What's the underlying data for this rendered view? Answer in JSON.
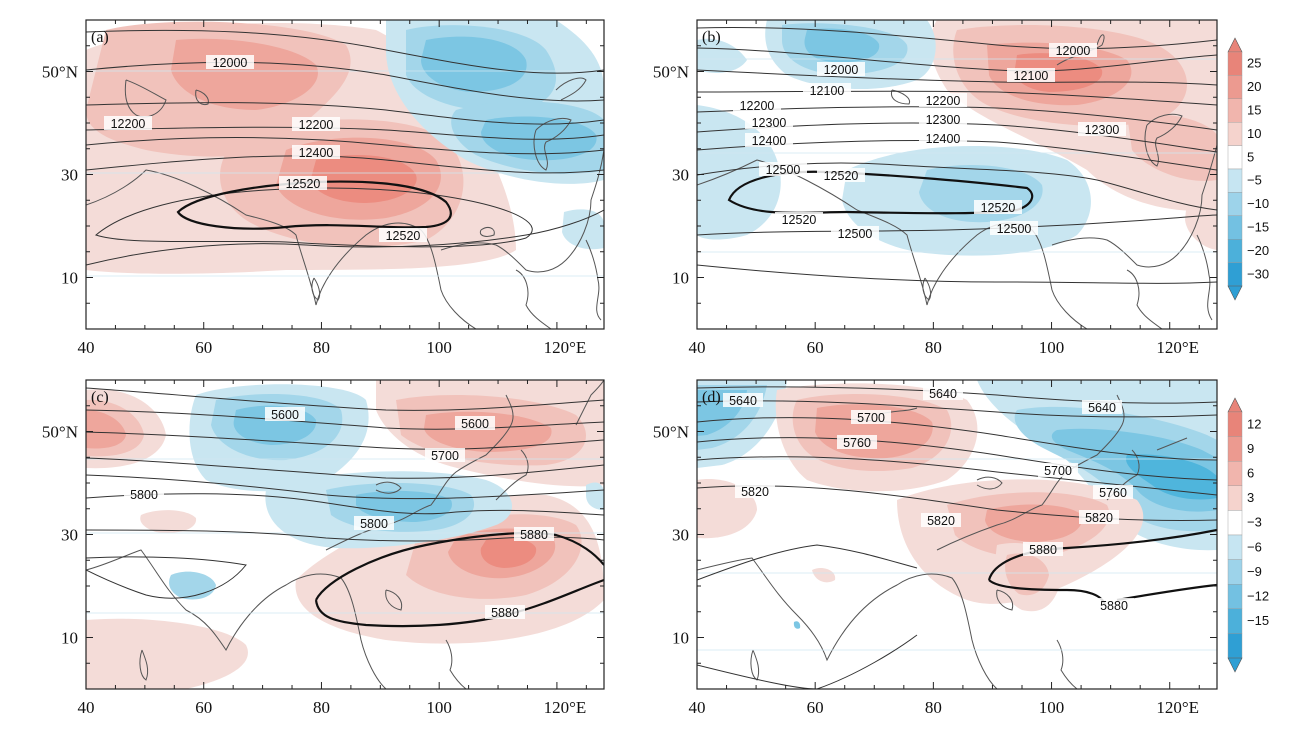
{
  "figure": {
    "x_ticks": [
      "40",
      "60",
      "80",
      "100",
      "120°E"
    ],
    "y_ticks": [
      "50°N",
      "30",
      "10"
    ],
    "colors": {
      "positive": [
        "#f4dcd8",
        "#f1c2bb",
        "#eea69c",
        "#ec8c80"
      ],
      "negative": [
        "#c9e6f1",
        "#a3d6ea",
        "#7cc6e3",
        "#4fb5dc"
      ]
    }
  },
  "panels": [
    {
      "letter": "(a)",
      "contour_labels": [
        "12000",
        "12200",
        "12200",
        "12400",
        "12520",
        "12520"
      ]
    },
    {
      "letter": "(b)",
      "contour_labels": [
        "12000",
        "12000",
        "12100",
        "12100",
        "12200",
        "12200",
        "12300",
        "12300",
        "12300",
        "12400",
        "12400",
        "12500",
        "12520",
        "12520",
        "12520",
        "12500",
        "12500"
      ]
    },
    {
      "letter": "(c)",
      "contour_labels": [
        "5600",
        "5600",
        "5700",
        "5800",
        "5800",
        "5880",
        "5880"
      ]
    },
    {
      "letter": "(d)",
      "contour_labels": [
        "5640",
        "5640",
        "5640",
        "5700",
        "5760",
        "5820",
        "5700",
        "5760",
        "5820",
        "5820",
        "5880",
        "5880"
      ]
    }
  ],
  "colorbars": [
    {
      "labels": [
        "25",
        "20",
        "15",
        "10",
        "5",
        "−5",
        "−10",
        "−15",
        "−20",
        "−30"
      ],
      "colors": [
        "#e88479",
        "#ec9a90",
        "#f1b5ad",
        "#f5d3cd",
        "#ffffff",
        "#c6e5f2",
        "#9dd3ea",
        "#73c1e2",
        "#4cb0da",
        "#2f9fd4"
      ]
    },
    {
      "labels": [
        "12",
        "9",
        "6",
        "3",
        "−3",
        "−6",
        "−9",
        "−12",
        "−15"
      ],
      "colors": [
        "#e88479",
        "#ec9a90",
        "#f1b5ad",
        "#f5d3cd",
        "#ffffff",
        "#c6e5f2",
        "#9dd3ea",
        "#73c1e2",
        "#4cb0da",
        "#2f9fd4"
      ]
    }
  ]
}
